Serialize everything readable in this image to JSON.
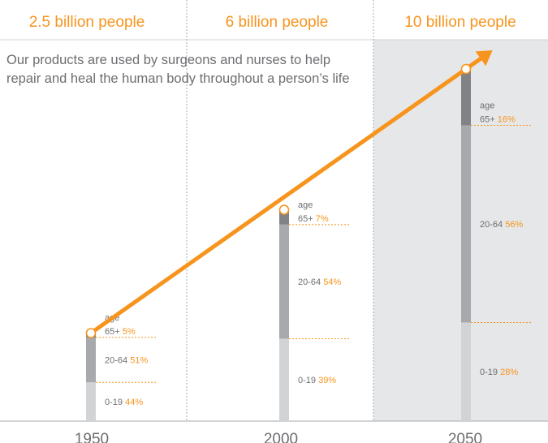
{
  "chart_data": {
    "type": "bar",
    "subtype": "stacked-percent",
    "intro": [
      "Our products are used by surgeons and nurses to help",
      "repair and heal the human body throughout a person’s life"
    ],
    "age_label": "age",
    "categories": [
      "1950",
      "2000",
      "2050"
    ],
    "population_labels": [
      "2.5 billion people",
      "6 billion people",
      "10 billion people"
    ],
    "population_billions": [
      2.5,
      6,
      10
    ],
    "series": [
      {
        "name": "0-19",
        "values": [
          44,
          39,
          28
        ],
        "color": "#d1d3d4"
      },
      {
        "name": "20-64",
        "values": [
          51,
          54,
          56
        ],
        "color": "#a7a9ac"
      },
      {
        "name": "65+",
        "values": [
          5,
          7,
          16
        ],
        "color": "#808285"
      }
    ],
    "value_suffix": "%",
    "colors": {
      "accent": "#f7941d",
      "text": "#6d6e71",
      "shaded_panel": "#e6e7e8",
      "divider": "#a7a9ac"
    },
    "grid": false
  }
}
